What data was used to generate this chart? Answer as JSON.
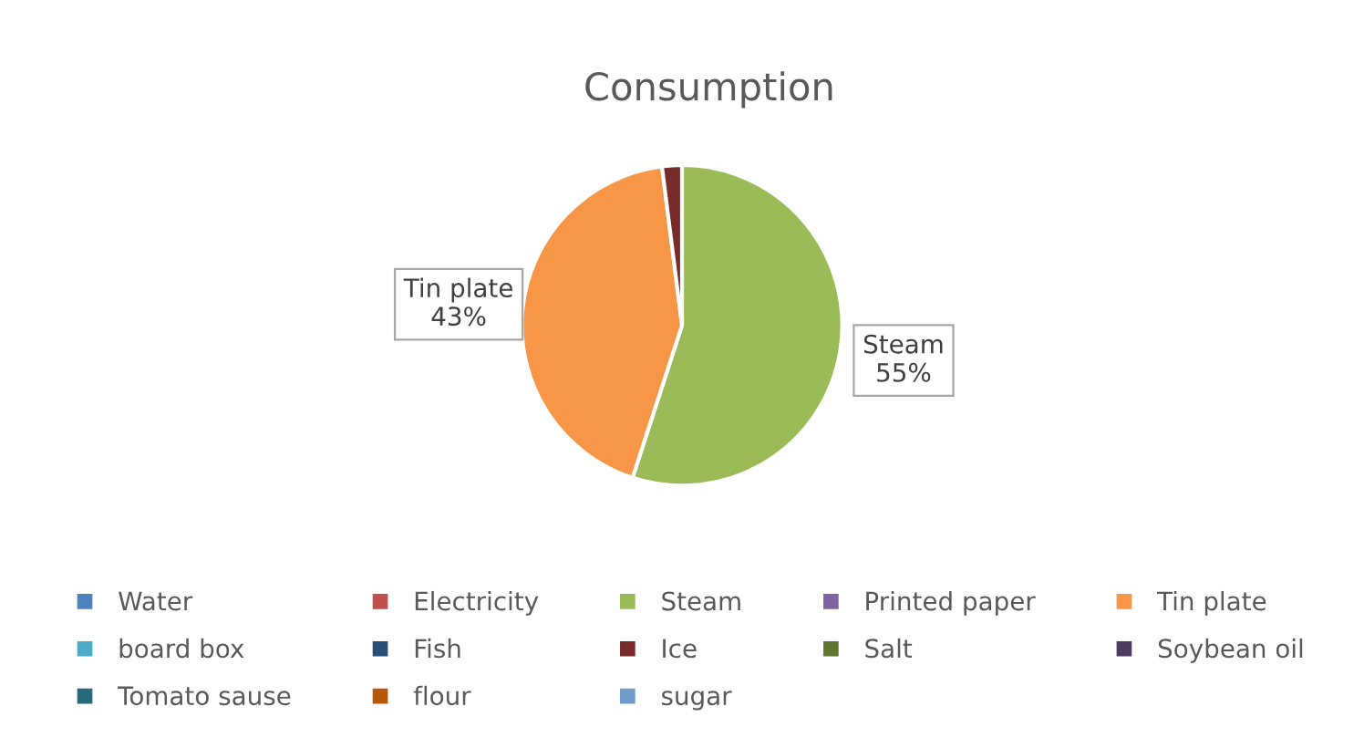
{
  "chart_data": {
    "type": "pie",
    "title": "Consumption",
    "categories": [
      "Water",
      "Electricity",
      "Steam",
      "Printed paper",
      "Tin plate",
      "board box",
      "Fish",
      "Ice",
      "Salt",
      "Soybean oil",
      "Tomato sause",
      "flour",
      "sugar"
    ],
    "values": [
      0,
      0,
      55,
      0,
      43,
      0,
      0,
      2,
      0,
      0,
      0,
      0,
      0
    ],
    "value_labels": [
      null,
      null,
      "Steam\n55%",
      null,
      "Tin plate\n43%",
      null,
      null,
      null,
      null,
      null,
      null,
      null,
      null
    ],
    "colors": [
      "#4f81bd",
      "#c0504d",
      "#9bbb59",
      "#8064a2",
      "#f79646",
      "#4bacc6",
      "#2c4d75",
      "#772c2a",
      "#5f7530",
      "#4d3b62",
      "#276a7c",
      "#b65708",
      "#729aca"
    ],
    "legend": "bottom"
  }
}
